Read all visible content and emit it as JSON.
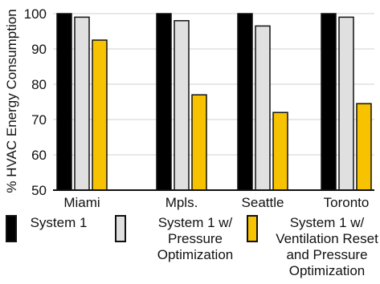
{
  "chart_data": {
    "type": "bar",
    "ylabel": "% HVAC Energy Consumption",
    "xlabel": "",
    "ylim": [
      50,
      100
    ],
    "yticks": [
      50,
      60,
      70,
      80,
      90,
      100
    ],
    "grid": true,
    "legend_position": "bottom",
    "categories": [
      "Miami",
      "Mpls.",
      "Seattle",
      "Toronto"
    ],
    "series": [
      {
        "name": "System 1",
        "color": "#000000",
        "values": [
          100,
          100,
          100,
          100
        ]
      },
      {
        "name": "System 1 w/\nPressure\nOptimization",
        "color": "#e0e0e0",
        "values": [
          99,
          98,
          96.5,
          99
        ]
      },
      {
        "name": "System 1 w/\nVentilation Reset\nand Pressure\nOptimization",
        "color": "#f7c200",
        "values": [
          92.5,
          77,
          72,
          74.5
        ]
      }
    ]
  }
}
